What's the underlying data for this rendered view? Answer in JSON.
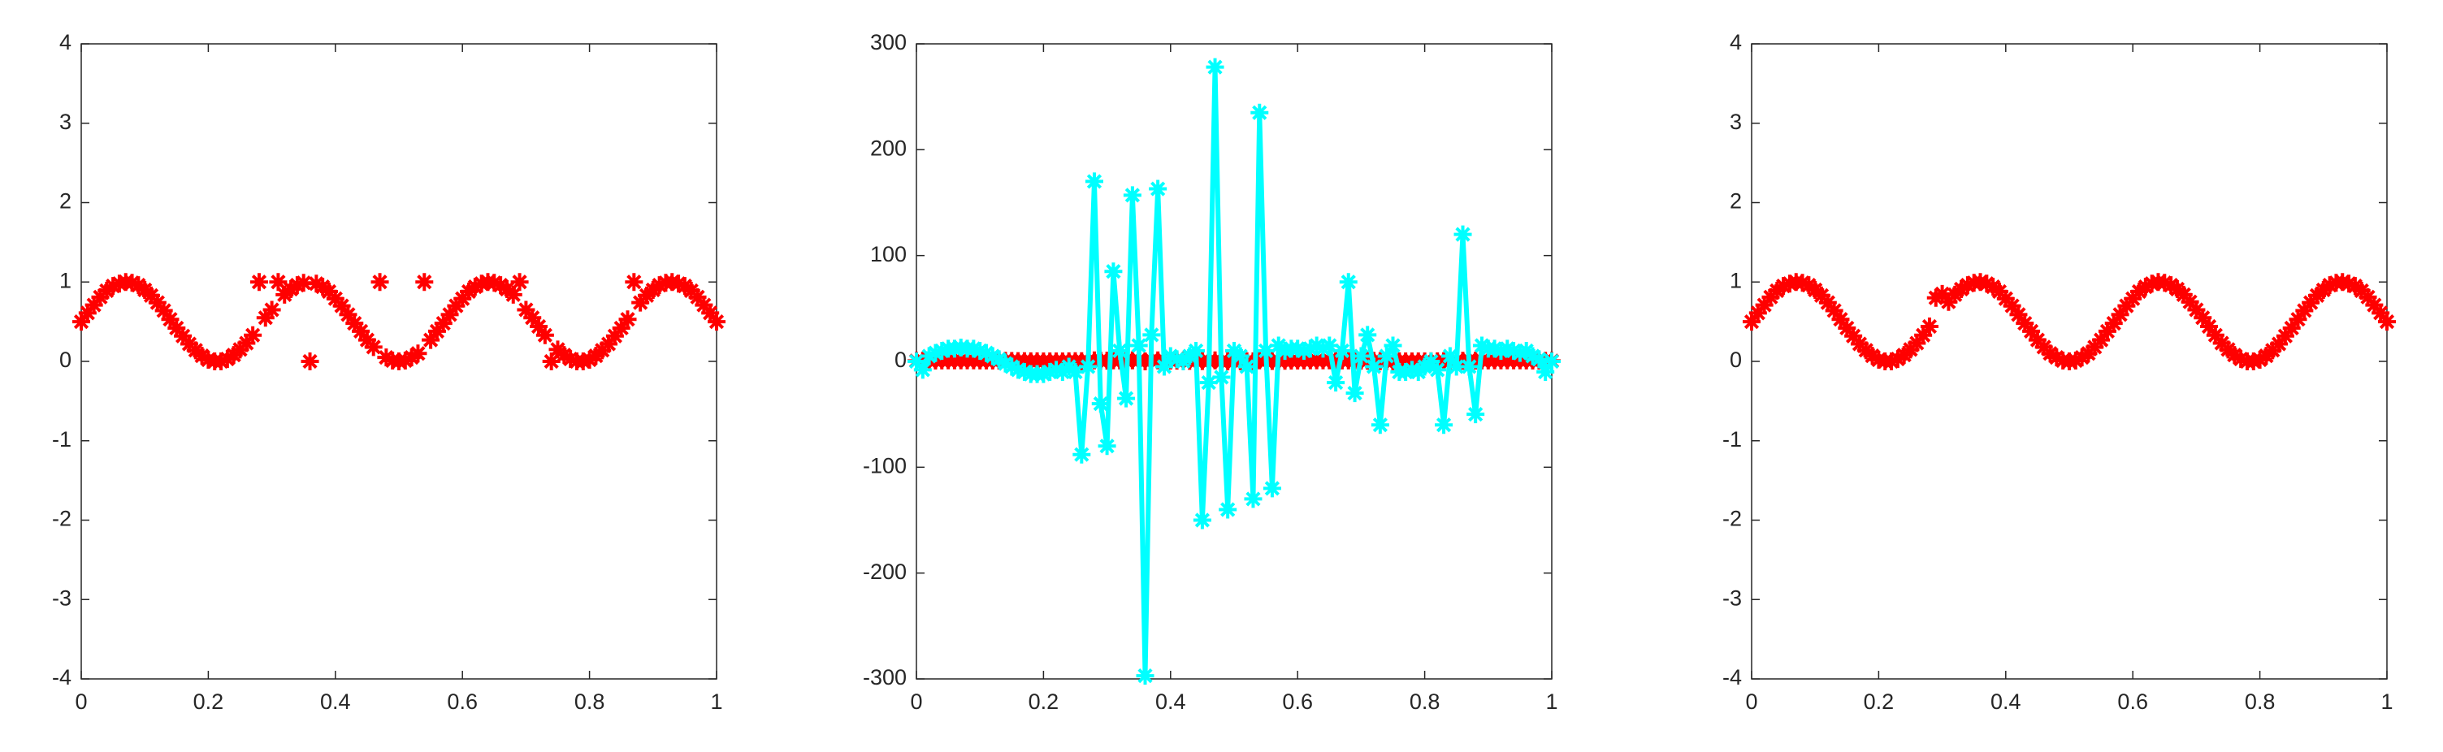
{
  "chart_data": [
    {
      "type": "scatter",
      "xlim": [
        0,
        1
      ],
      "ylim": [
        -4,
        4
      ],
      "xticks": [
        0,
        0.2,
        0.4,
        0.6,
        0.8,
        1
      ],
      "yticks": [
        -4,
        -3,
        -2,
        -1,
        0,
        1,
        2,
        3,
        4
      ],
      "x": [
        0,
        0.01,
        0.02,
        0.03,
        0.04,
        0.05,
        0.06,
        0.07,
        0.08,
        0.09,
        0.1,
        0.11,
        0.12,
        0.13,
        0.14,
        0.15,
        0.16,
        0.17,
        0.18,
        0.19,
        0.2,
        0.21,
        0.22,
        0.23,
        0.24,
        0.25,
        0.26,
        0.27,
        0.28,
        0.29,
        0.3,
        0.31,
        0.32,
        0.33,
        0.34,
        0.35,
        0.36,
        0.37,
        0.38,
        0.39,
        0.4,
        0.41,
        0.42,
        0.43,
        0.44,
        0.45,
        0.46,
        0.47,
        0.48,
        0.49,
        0.5,
        0.51,
        0.52,
        0.53,
        0.54,
        0.55,
        0.56,
        0.57,
        0.58,
        0.59,
        0.6,
        0.61,
        0.62,
        0.63,
        0.64,
        0.65,
        0.66,
        0.67,
        0.68,
        0.69,
        0.7,
        0.71,
        0.72,
        0.73,
        0.74,
        0.75,
        0.76,
        0.77,
        0.78,
        0.79,
        0.8,
        0.81,
        0.82,
        0.83,
        0.84,
        0.85,
        0.86,
        0.87,
        0.88,
        0.89,
        0.9,
        0.91,
        0.92,
        0.93,
        0.94,
        0.95,
        0.96,
        0.97,
        0.98,
        0.99,
        1
      ],
      "series": [
        {
          "color": "#ff0000",
          "line": false,
          "values": [
            0.5,
            0.61,
            0.71,
            0.81,
            0.89,
            0.95,
            0.98,
            1,
            0.99,
            0.96,
            0.9,
            0.83,
            0.74,
            0.64,
            0.53,
            0.42,
            0.32,
            0.22,
            0.14,
            0.07,
            0.02,
            0,
            0,
            0.03,
            0.08,
            0.15,
            0.23,
            0.33,
            1,
            0.55,
            0.65,
            1,
            0.84,
            0.91,
            0.96,
            0.99,
            0,
            0.98,
            0.94,
            0.88,
            0.79,
            0.7,
            0.59,
            0.48,
            0.38,
            0.27,
            0.18,
            1,
            0.05,
            0.01,
            0,
            0.01,
            0.05,
            0.1,
            1,
            0.27,
            0.38,
            0.48,
            0.59,
            0.7,
            0.79,
            0.88,
            0.94,
            0.98,
            1,
            0.99,
            0.96,
            0.91,
            0.84,
            1,
            0.65,
            0.55,
            0.44,
            0.33,
            0,
            0.15,
            0.08,
            0.03,
            0,
            0,
            0.02,
            0.07,
            0.14,
            0.22,
            0.32,
            0.42,
            0.53,
            1,
            0.74,
            0.83,
            0.9,
            0.96,
            0.99,
            1,
            0.98,
            0.95,
            0.89,
            0.81,
            0.71,
            0.61,
            0.5
          ]
        }
      ]
    },
    {
      "type": "line",
      "xlim": [
        0,
        1
      ],
      "ylim": [
        -300,
        300
      ],
      "xticks": [
        0,
        0.2,
        0.4,
        0.6,
        0.8,
        1
      ],
      "yticks": [
        -300,
        -200,
        -100,
        0,
        100,
        200,
        300
      ],
      "x": [
        0,
        0.01,
        0.02,
        0.03,
        0.04,
        0.05,
        0.06,
        0.07,
        0.08,
        0.09,
        0.1,
        0.11,
        0.12,
        0.13,
        0.14,
        0.15,
        0.16,
        0.17,
        0.18,
        0.19,
        0.2,
        0.21,
        0.22,
        0.23,
        0.24,
        0.25,
        0.26,
        0.27,
        0.28,
        0.29,
        0.3,
        0.31,
        0.32,
        0.33,
        0.34,
        0.35,
        0.36,
        0.37,
        0.38,
        0.39,
        0.4,
        0.41,
        0.42,
        0.43,
        0.44,
        0.45,
        0.46,
        0.47,
        0.48,
        0.49,
        0.5,
        0.51,
        0.52,
        0.53,
        0.54,
        0.55,
        0.56,
        0.57,
        0.58,
        0.59,
        0.6,
        0.61,
        0.62,
        0.63,
        0.64,
        0.65,
        0.66,
        0.67,
        0.68,
        0.69,
        0.7,
        0.71,
        0.72,
        0.73,
        0.74,
        0.75,
        0.76,
        0.77,
        0.78,
        0.79,
        0.8,
        0.81,
        0.82,
        0.83,
        0.84,
        0.85,
        0.86,
        0.87,
        0.88,
        0.89,
        0.9,
        0.91,
        0.92,
        0.93,
        0.94,
        0.95,
        0.96,
        0.97,
        0.98,
        0.99,
        1
      ],
      "series": [
        {
          "color": "#ff0000",
          "line": false,
          "values": [
            0.5,
            0.61,
            0.71,
            0.81,
            0.89,
            0.95,
            0.98,
            1,
            0.99,
            0.96,
            0.9,
            0.83,
            0.74,
            0.64,
            0.53,
            0.42,
            0.32,
            0.22,
            0.14,
            0.07,
            0.02,
            0,
            0,
            0.03,
            0.08,
            0.15,
            0.23,
            0.33,
            1,
            0.55,
            0.65,
            1,
            0.84,
            0.91,
            0.96,
            0.99,
            0,
            0.98,
            0.94,
            0.88,
            0.79,
            0.7,
            0.59,
            0.48,
            0.38,
            0.27,
            0.18,
            1,
            0.05,
            0.01,
            0,
            0.01,
            0.05,
            0.1,
            1,
            0.27,
            0.38,
            0.48,
            0.59,
            0.7,
            0.79,
            0.88,
            0.94,
            0.98,
            1,
            0.99,
            0.96,
            0.91,
            0.84,
            1,
            0.65,
            0.55,
            0.44,
            0.33,
            0,
            0.15,
            0.08,
            0.03,
            0,
            0,
            0.02,
            0.07,
            0.14,
            0.22,
            0.32,
            0.42,
            0.53,
            1,
            0.74,
            0.83,
            0.9,
            0.96,
            0.99,
            1,
            0.98,
            0.95,
            0.89,
            0.81,
            0.71,
            0.61,
            0.5
          ]
        },
        {
          "color": "#00ffff",
          "line": true,
          "values": [
            0,
            -8,
            5,
            8,
            10,
            12,
            12,
            13,
            12,
            12,
            10,
            8,
            5,
            2,
            -2,
            -5,
            -8,
            -10,
            -12,
            -12,
            -12,
            -10,
            -8,
            -10,
            -5,
            -10,
            -88,
            -5,
            170,
            -40,
            -80,
            85,
            10,
            -35,
            157,
            15,
            -297,
            25,
            163,
            -5,
            5,
            2,
            0,
            5,
            10,
            -150,
            -20,
            278,
            -15,
            -140,
            10,
            5,
            -5,
            -130,
            235,
            10,
            -120,
            15,
            10,
            12,
            12,
            10,
            12,
            15,
            12,
            15,
            -20,
            10,
            75,
            -30,
            5,
            25,
            -5,
            -60,
            5,
            15,
            -10,
            -10,
            -8,
            -10,
            -5,
            0,
            -8,
            -60,
            5,
            -5,
            120,
            -5,
            -50,
            15,
            12,
            12,
            10,
            12,
            10,
            8,
            10,
            5,
            2,
            -10,
            0
          ]
        }
      ]
    },
    {
      "type": "scatter",
      "xlim": [
        0,
        1
      ],
      "ylim": [
        -4,
        4
      ],
      "xticks": [
        0,
        0.2,
        0.4,
        0.6,
        0.8,
        1
      ],
      "yticks": [
        -4,
        -3,
        -2,
        -1,
        0,
        1,
        2,
        3,
        4
      ],
      "x": [
        0,
        0.01,
        0.02,
        0.03,
        0.04,
        0.05,
        0.06,
        0.07,
        0.08,
        0.09,
        0.1,
        0.11,
        0.12,
        0.13,
        0.14,
        0.15,
        0.16,
        0.17,
        0.18,
        0.19,
        0.2,
        0.21,
        0.22,
        0.23,
        0.24,
        0.25,
        0.26,
        0.27,
        0.28,
        0.29,
        0.3,
        0.31,
        0.32,
        0.33,
        0.34,
        0.35,
        0.36,
        0.37,
        0.38,
        0.39,
        0.4,
        0.41,
        0.42,
        0.43,
        0.44,
        0.45,
        0.46,
        0.47,
        0.48,
        0.49,
        0.5,
        0.51,
        0.52,
        0.53,
        0.54,
        0.55,
        0.56,
        0.57,
        0.58,
        0.59,
        0.6,
        0.61,
        0.62,
        0.63,
        0.64,
        0.65,
        0.66,
        0.67,
        0.68,
        0.69,
        0.7,
        0.71,
        0.72,
        0.73,
        0.74,
        0.75,
        0.76,
        0.77,
        0.78,
        0.79,
        0.8,
        0.81,
        0.82,
        0.83,
        0.84,
        0.85,
        0.86,
        0.87,
        0.88,
        0.89,
        0.9,
        0.91,
        0.92,
        0.93,
        0.94,
        0.95,
        0.96,
        0.97,
        0.98,
        0.99,
        1
      ],
      "series": [
        {
          "color": "#ff0000",
          "line": false,
          "values": [
            0.5,
            0.61,
            0.71,
            0.81,
            0.89,
            0.95,
            0.98,
            1,
            0.99,
            0.96,
            0.9,
            0.83,
            0.74,
            0.64,
            0.53,
            0.42,
            0.32,
            0.22,
            0.14,
            0.07,
            0.02,
            0,
            0,
            0.03,
            0.08,
            0.15,
            0.23,
            0.33,
            0.44,
            0.8,
            0.85,
            0.75,
            0.84,
            0.91,
            0.96,
            0.99,
            1,
            0.98,
            0.94,
            0.88,
            0.79,
            0.7,
            0.59,
            0.48,
            0.38,
            0.27,
            0.18,
            0.1,
            0.05,
            0.01,
            0,
            0.01,
            0.05,
            0.1,
            0.18,
            0.27,
            0.38,
            0.48,
            0.59,
            0.7,
            0.79,
            0.88,
            0.94,
            0.98,
            1,
            0.99,
            0.96,
            0.91,
            0.84,
            0.75,
            0.65,
            0.55,
            0.44,
            0.33,
            0.23,
            0.15,
            0.08,
            0.03,
            0,
            0,
            0.02,
            0.07,
            0.14,
            0.22,
            0.32,
            0.42,
            0.53,
            0.64,
            0.74,
            0.83,
            0.9,
            0.96,
            0.99,
            1,
            0.98,
            0.95,
            0.89,
            0.81,
            0.71,
            0.61,
            0.5
          ]
        }
      ]
    }
  ]
}
